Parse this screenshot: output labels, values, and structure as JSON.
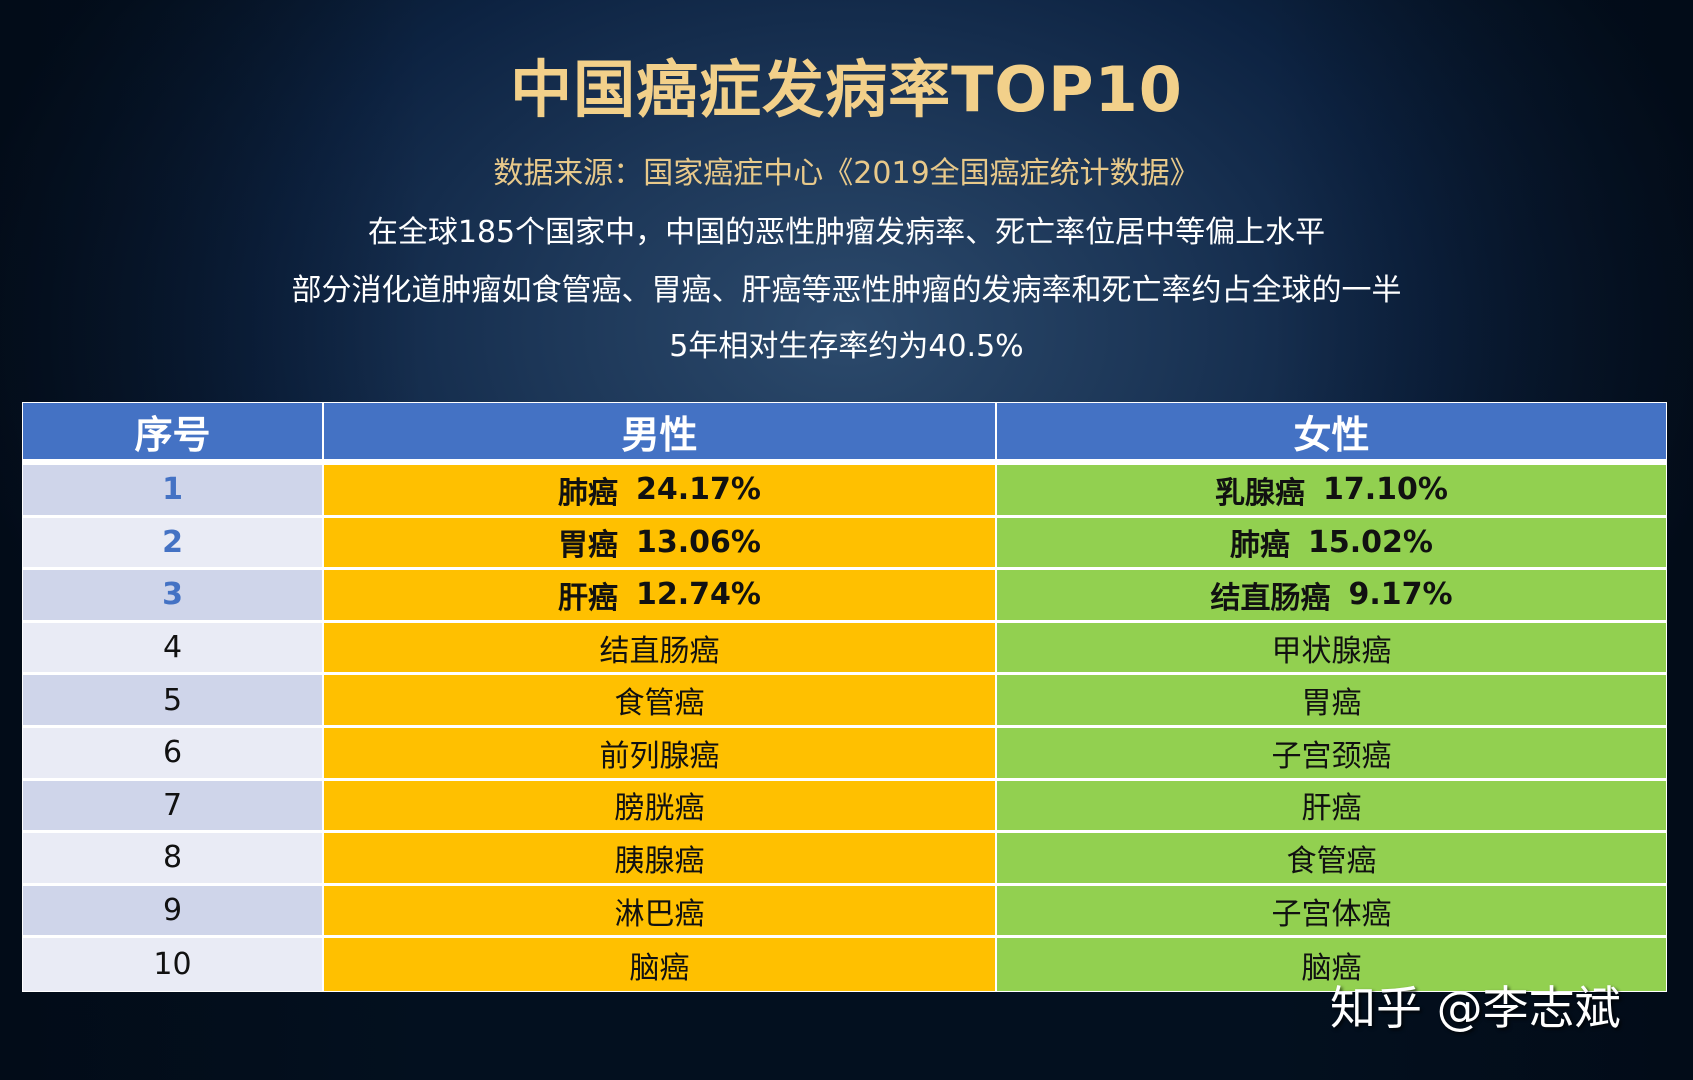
{
  "header": {
    "title": "中国癌症发病率TOP10",
    "source": "数据来源：国家癌症中心《2019全国癌症统计数据》",
    "description": [
      "在全球185个国家中，中国的恶性肿瘤发病率、死亡率位居中等偏上水平",
      "部分消化道肿瘤如食管癌、胃癌、肝癌等恶性肿瘤的发病率和死亡率约占全球的一半",
      "5年相对生存率约为40.5%"
    ]
  },
  "table": {
    "columns": [
      "序号",
      "男性",
      "女性"
    ],
    "rows": [
      {
        "rank": "1",
        "male": {
          "name": "肺癌",
          "rate": "24.17%"
        },
        "female": {
          "name": "乳腺癌",
          "rate": "17.10%"
        }
      },
      {
        "rank": "2",
        "male": {
          "name": "胃癌",
          "rate": "13.06%"
        },
        "female": {
          "name": "肺癌",
          "rate": "15.02%"
        }
      },
      {
        "rank": "3",
        "male": {
          "name": "肝癌",
          "rate": "12.74%"
        },
        "female": {
          "name": "结直肠癌",
          "rate": "9.17%"
        }
      },
      {
        "rank": "4",
        "male": {
          "name": "结直肠癌",
          "rate": ""
        },
        "female": {
          "name": "甲状腺癌",
          "rate": ""
        }
      },
      {
        "rank": "5",
        "male": {
          "name": "食管癌",
          "rate": ""
        },
        "female": {
          "name": "胃癌",
          "rate": ""
        }
      },
      {
        "rank": "6",
        "male": {
          "name": "前列腺癌",
          "rate": ""
        },
        "female": {
          "name": "子宫颈癌",
          "rate": ""
        }
      },
      {
        "rank": "7",
        "male": {
          "name": "膀胱癌",
          "rate": ""
        },
        "female": {
          "name": "肝癌",
          "rate": ""
        }
      },
      {
        "rank": "8",
        "male": {
          "name": "胰腺癌",
          "rate": ""
        },
        "female": {
          "name": "食管癌",
          "rate": ""
        }
      },
      {
        "rank": "9",
        "male": {
          "name": "淋巴癌",
          "rate": ""
        },
        "female": {
          "name": "子宫体癌",
          "rate": ""
        }
      },
      {
        "rank": "10",
        "male": {
          "name": "脑癌",
          "rate": ""
        },
        "female": {
          "name": "脑癌",
          "rate": ""
        }
      }
    ]
  },
  "colors": {
    "title": "#f2d08a",
    "header_bg": "#4472c4",
    "male_bg": "#ffc000",
    "female_bg": "#92d050",
    "rank_odd_bg": "#cfd5ea",
    "rank_even_bg": "#e9ebf5"
  },
  "watermark": "知乎 @李志斌"
}
